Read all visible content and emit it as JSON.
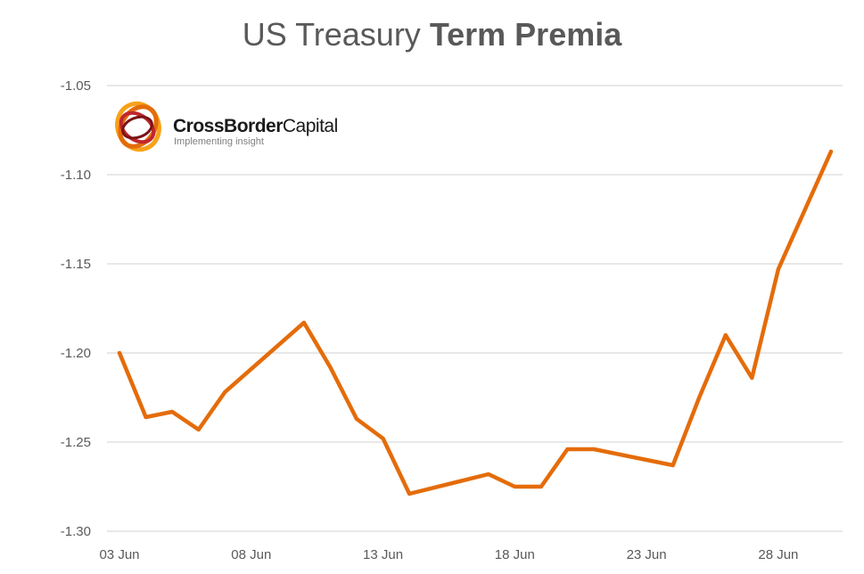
{
  "title": {
    "normal": "US Treasury ",
    "bold": "Term Premia"
  },
  "logo": {
    "name_bold": "CrossBorder",
    "name_regular": "Capital",
    "tagline": "Implementing insight"
  },
  "colors": {
    "line": "#E46C0A",
    "grid": "#D9D9D9",
    "text": "#595959"
  },
  "chart_data": {
    "type": "line",
    "title": "US Treasury Term Premia",
    "xlabel": "",
    "ylabel": "",
    "ylim": [
      -1.3,
      -1.05
    ],
    "yticks": [
      -1.05,
      -1.1,
      -1.15,
      -1.2,
      -1.25,
      -1.3
    ],
    "ytick_labels": [
      "-1.05",
      "-1.10",
      "-1.15",
      "-1.20",
      "-1.25",
      "-1.30"
    ],
    "x_range": [
      "2020-06-03",
      "2020-06-30"
    ],
    "xticks": [
      "2020-06-03",
      "2020-06-08",
      "2020-06-13",
      "2020-06-18",
      "2020-06-23",
      "2020-06-28"
    ],
    "xtick_labels": [
      "03 Jun",
      "08 Jun",
      "13 Jun",
      "18 Jun",
      "23 Jun",
      "28 Jun"
    ],
    "grid": true,
    "series": [
      {
        "points": [
          {
            "x": "2020-06-03",
            "y": -1.2
          },
          {
            "x": "2020-06-04",
            "y": -1.236
          },
          {
            "x": "2020-06-05",
            "y": -1.233
          },
          {
            "x": "2020-06-06",
            "y": -1.243
          },
          {
            "x": "2020-06-07",
            "y": -1.222
          },
          {
            "x": "2020-06-10",
            "y": -1.183
          },
          {
            "x": "2020-06-11",
            "y": -1.208
          },
          {
            "x": "2020-06-12",
            "y": -1.237
          },
          {
            "x": "2020-06-13",
            "y": -1.248
          },
          {
            "x": "2020-06-14",
            "y": -1.279
          },
          {
            "x": "2020-06-17",
            "y": -1.268
          },
          {
            "x": "2020-06-18",
            "y": -1.275
          },
          {
            "x": "2020-06-19",
            "y": -1.275
          },
          {
            "x": "2020-06-20",
            "y": -1.254
          },
          {
            "x": "2020-06-21",
            "y": -1.254
          },
          {
            "x": "2020-06-24",
            "y": -1.263
          },
          {
            "x": "2020-06-25",
            "y": -1.225
          },
          {
            "x": "2020-06-26",
            "y": -1.19
          },
          {
            "x": "2020-06-27",
            "y": -1.214
          },
          {
            "x": "2020-06-28",
            "y": -1.153
          },
          {
            "x": "2020-06-30",
            "y": -1.087
          }
        ]
      }
    ]
  }
}
